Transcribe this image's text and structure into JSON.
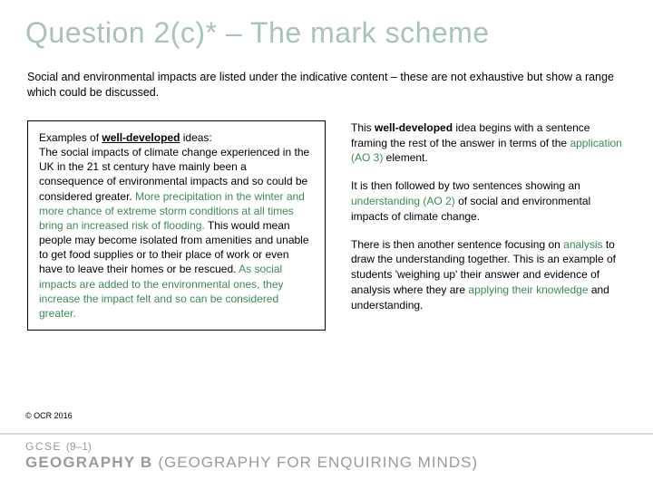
{
  "title": "Question 2(c)* – The mark scheme",
  "intro": "Social and environmental impacts are listed under the indicative content – these are not exhaustive but show a range which could be discussed.",
  "leftBox": {
    "lead": "Examples of ",
    "leadBold": "well-developed",
    "leadTail": " ideas:",
    "p1a": "The social impacts of climate change experienced in the UK in the 21 st century have mainly been a consequence of environmental impacts and so could be considered greater. ",
    "p1b": "More precipitation in the winter and more chance of extreme storm conditions at all times bring an increased risk of flooding.",
    "p1c": " This would mean people may become isolated from amenities and unable to get food supplies or to their place of work or even have to leave their homes or be rescued. ",
    "p1d": "As social impacts are added to the environmental ones, they increase the impact felt and so can be considered greater."
  },
  "right": {
    "p1a": "This ",
    "p1b": "well-developed",
    "p1c": " idea begins with a sentence framing the rest of the answer in terms of the ",
    "p1d": "application (AO 3)",
    "p1e": " element.",
    "p2a": "It is then followed by two sentences showing an ",
    "p2b": "understanding (AO 2)",
    "p2c": " of social and environmental impacts of climate change.",
    "p3a": "There is then another sentence focusing on ",
    "p3b": "analysis",
    "p3c": " to draw the understanding together. This is an example of students 'weighing up' their answer and evidence of analysis where they are ",
    "p3d": "applying their knowledge",
    "p3e": " and understanding."
  },
  "copyright": "© OCR 2016",
  "footer": {
    "gcse": "GCSE ",
    "gcseNum": "(9–1)",
    "subjectA": "GEOGRAPHY B ",
    "subjectB": "(GEOGRAPHY FOR ENQUIRING MINDS)"
  },
  "colors": {
    "titleColor": "#a7c4b5",
    "accentGreen": "#3d8a55",
    "footerGrey": "#9a9a9a",
    "ruleGrey": "#d9d9d9"
  }
}
